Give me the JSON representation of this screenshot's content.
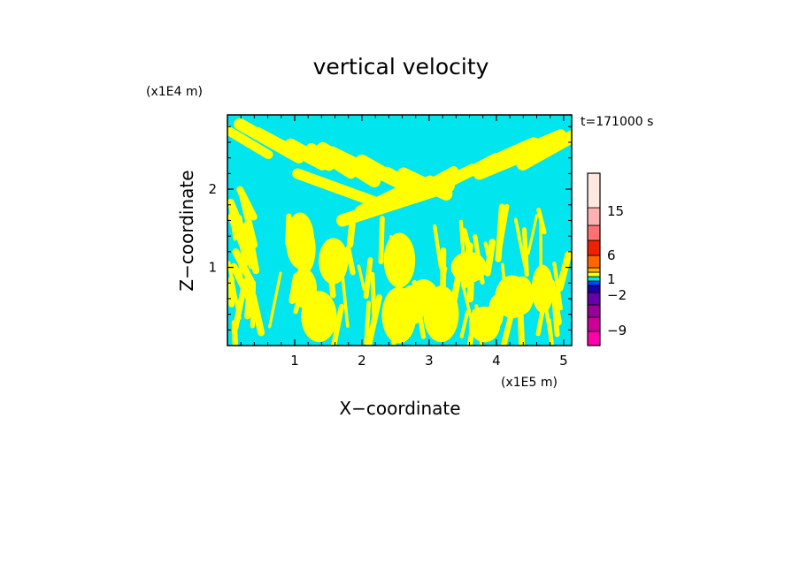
{
  "chart_data": {
    "type": "heatmap",
    "title": "vertical velocity",
    "xlabel": "X−coordinate",
    "ylabel": "Z−coordinate",
    "x_unit": "(x1E5 m)",
    "y_unit": "(x1E4 m)",
    "time_label": "t=171000 s",
    "xlim": [
      0,
      5.12
    ],
    "ylim": [
      0,
      2.95
    ],
    "x_ticks": [
      1,
      2,
      3,
      4,
      5
    ],
    "y_ticks": [
      1,
      2
    ],
    "x_tick_labels": [
      "1",
      "2",
      "3",
      "4",
      "5"
    ],
    "y_tick_labels": [
      "1",
      "2"
    ],
    "field_colors": {
      "negative": "#00e5ee",
      "positive": "#ffff00"
    },
    "colorbar": {
      "levels": [
        {
          "color": "#ff00aa"
        },
        {
          "color": "#cc0099"
        },
        {
          "color": "#990099"
        },
        {
          "color": "#6600aa"
        },
        {
          "color": "#1a00a6"
        },
        {
          "color": "#0040ff"
        },
        {
          "color": "#00e5ee"
        },
        {
          "color": "#ffff00"
        },
        {
          "color": "#ffb000"
        },
        {
          "color": "#ff6600"
        },
        {
          "color": "#ee2200"
        },
        {
          "color": "#ff7070"
        },
        {
          "color": "#ffb0b0"
        },
        {
          "color": "#ffe8e0"
        }
      ],
      "tick_labels": [
        "15",
        "6",
        "1",
        "−2",
        "−9"
      ]
    }
  }
}
